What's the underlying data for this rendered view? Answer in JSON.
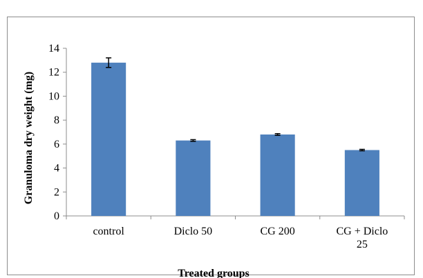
{
  "chart_data": {
    "type": "bar",
    "categories": [
      [
        "control"
      ],
      [
        "Diclo 50"
      ],
      [
        "CG 200"
      ],
      [
        "CG + Diclo",
        "25"
      ]
    ],
    "values": [
      12.8,
      6.3,
      6.8,
      5.5
    ],
    "errors": [
      0.4,
      0.07,
      0.07,
      0.06
    ],
    "title": "",
    "xlabel": "Treated groups",
    "ylabel": "Granuloma dry weight (mg)",
    "ylim": [
      0,
      14
    ],
    "yticks": [
      0,
      2,
      4,
      6,
      8,
      10,
      12,
      14
    ],
    "grid": false,
    "bar_color": "#4f81bd"
  }
}
